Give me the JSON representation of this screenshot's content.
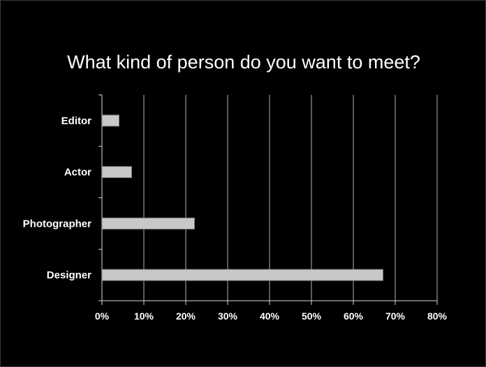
{
  "chart_data": {
    "type": "bar",
    "orientation": "horizontal",
    "title": "What kind of person do you want to meet?",
    "xlabel": "",
    "ylabel": "",
    "categories": [
      "Editor",
      "Actor",
      "Photographer",
      "Designer"
    ],
    "values": [
      4,
      7,
      22,
      67
    ],
    "value_unit": "%",
    "xlim": [
      0,
      80
    ],
    "xticks": [
      "0%",
      "10%",
      "20%",
      "30%",
      "40%",
      "50%",
      "60%",
      "70%",
      "80%"
    ],
    "grid": "vertical",
    "legend": "none",
    "colors": {
      "background": "#000000",
      "bar_fill": "#c8c8c8",
      "bar_stroke": "#7a7a7a",
      "grid": "#b4b4b4",
      "axis": "#d8d8d8",
      "text": "#ffffff"
    }
  }
}
